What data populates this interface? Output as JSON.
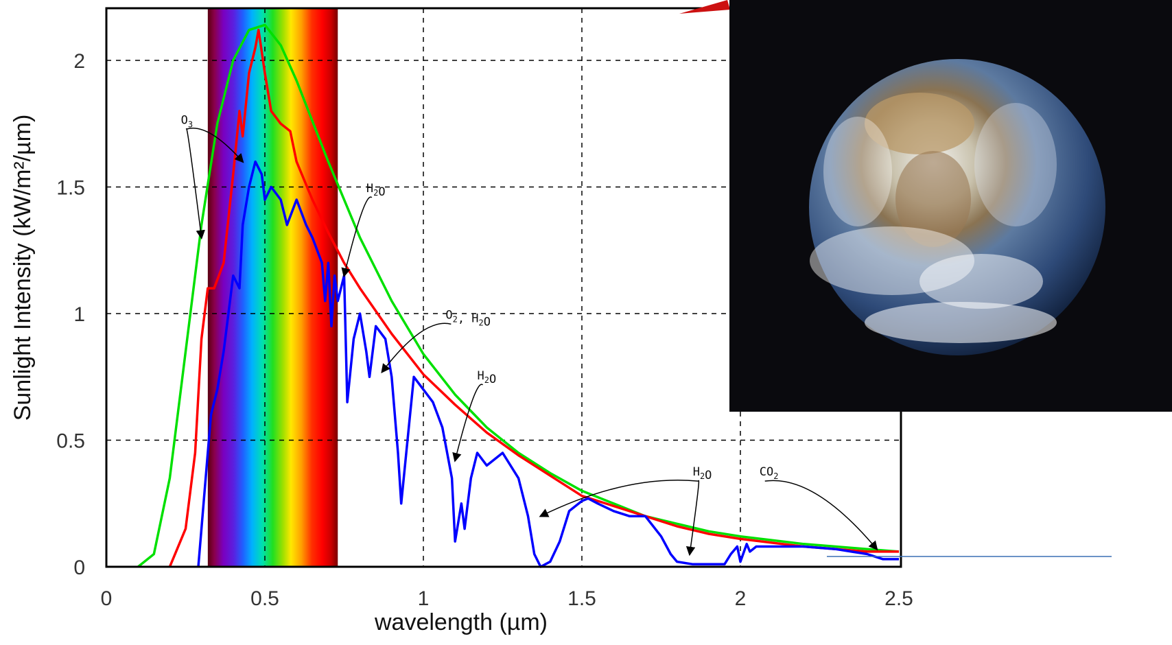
{
  "chart_data": {
    "type": "line",
    "title": "",
    "xlabel": "wavelength (µm)",
    "ylabel": "Sunlight Intensity (kW/m²/µm)",
    "xlim": [
      0,
      2.5
    ],
    "ylim": [
      0,
      2.15
    ],
    "x_ticks": [
      {
        "value": 0,
        "label": "0"
      },
      {
        "value": 0.5,
        "label": "0.5"
      },
      {
        "value": 1,
        "label": "1"
      },
      {
        "value": 1.5,
        "label": "1.5"
      },
      {
        "value": 2,
        "label": "2"
      },
      {
        "value": 2.5,
        "label": "2.5"
      }
    ],
    "y_ticks": [
      {
        "value": 0,
        "label": "0"
      },
      {
        "value": 0.5,
        "label": "0.5"
      },
      {
        "value": 1,
        "label": "1"
      },
      {
        "value": 1.5,
        "label": "1.5"
      },
      {
        "value": 2,
        "label": "2"
      }
    ],
    "grid": "dashed",
    "visible_band": [
      0.32,
      0.73
    ],
    "series": [
      {
        "color": "#00e000",
        "x": [
          0.1,
          0.15,
          0.2,
          0.25,
          0.3,
          0.35,
          0.4,
          0.45,
          0.5,
          0.55,
          0.6,
          0.65,
          0.7,
          0.8,
          0.9,
          1.0,
          1.1,
          1.2,
          1.3,
          1.4,
          1.5,
          1.6,
          1.7,
          1.8,
          1.9,
          2.0,
          2.2,
          2.4,
          2.5
        ],
        "values": [
          0.0,
          0.05,
          0.35,
          0.85,
          1.35,
          1.75,
          2.0,
          2.12,
          2.14,
          2.06,
          1.92,
          1.76,
          1.6,
          1.3,
          1.05,
          0.84,
          0.68,
          0.55,
          0.45,
          0.37,
          0.3,
          0.25,
          0.2,
          0.17,
          0.14,
          0.12,
          0.09,
          0.07,
          0.06
        ]
      },
      {
        "color": "#ff0000",
        "x": [
          0.2,
          0.25,
          0.28,
          0.3,
          0.32,
          0.34,
          0.37,
          0.4,
          0.42,
          0.43,
          0.45,
          0.47,
          0.48,
          0.5,
          0.52,
          0.55,
          0.58,
          0.6,
          0.65,
          0.7,
          0.75,
          0.8,
          0.9,
          1.0,
          1.1,
          1.2,
          1.3,
          1.4,
          1.5,
          1.6,
          1.7,
          1.8,
          1.9,
          2.0,
          2.2,
          2.4,
          2.5
        ],
        "values": [
          0.0,
          0.15,
          0.45,
          0.9,
          1.1,
          1.1,
          1.2,
          1.55,
          1.8,
          1.7,
          1.95,
          2.05,
          2.12,
          1.95,
          1.8,
          1.75,
          1.72,
          1.6,
          1.45,
          1.32,
          1.2,
          1.1,
          0.92,
          0.76,
          0.64,
          0.53,
          0.44,
          0.36,
          0.28,
          0.24,
          0.2,
          0.16,
          0.13,
          0.11,
          0.08,
          0.06,
          0.06
        ]
      },
      {
        "color": "#0000ff",
        "x": [
          0.29,
          0.31,
          0.32,
          0.33,
          0.35,
          0.37,
          0.39,
          0.4,
          0.42,
          0.43,
          0.45,
          0.47,
          0.49,
          0.5,
          0.52,
          0.55,
          0.57,
          0.6,
          0.63,
          0.65,
          0.68,
          0.69,
          0.7,
          0.71,
          0.72,
          0.73,
          0.75,
          0.76,
          0.78,
          0.8,
          0.82,
          0.83,
          0.85,
          0.88,
          0.9,
          0.92,
          0.93,
          0.95,
          0.97,
          1.0,
          1.03,
          1.06,
          1.09,
          1.1,
          1.12,
          1.13,
          1.15,
          1.17,
          1.2,
          1.25,
          1.3,
          1.33,
          1.35,
          1.37,
          1.4,
          1.43,
          1.46,
          1.5,
          1.52,
          1.55,
          1.6,
          1.65,
          1.7,
          1.75,
          1.78,
          1.8,
          1.85,
          1.9,
          1.95,
          1.97,
          1.99,
          2.0,
          2.02,
          2.03,
          2.05,
          2.1,
          2.2,
          2.3,
          2.35,
          2.4,
          2.45,
          2.5
        ],
        "values": [
          0.0,
          0.3,
          0.45,
          0.6,
          0.7,
          0.85,
          1.05,
          1.15,
          1.1,
          1.35,
          1.5,
          1.6,
          1.55,
          1.45,
          1.5,
          1.45,
          1.35,
          1.45,
          1.35,
          1.3,
          1.2,
          1.05,
          1.2,
          0.95,
          1.15,
          1.05,
          1.15,
          0.65,
          0.9,
          1.0,
          0.85,
          0.75,
          0.95,
          0.9,
          0.75,
          0.45,
          0.25,
          0.5,
          0.75,
          0.7,
          0.65,
          0.55,
          0.35,
          0.1,
          0.25,
          0.15,
          0.35,
          0.45,
          0.4,
          0.45,
          0.35,
          0.2,
          0.05,
          0.0,
          0.02,
          0.1,
          0.22,
          0.26,
          0.27,
          0.25,
          0.22,
          0.2,
          0.2,
          0.12,
          0.05,
          0.02,
          0.01,
          0.01,
          0.01,
          0.05,
          0.08,
          0.02,
          0.09,
          0.06,
          0.08,
          0.08,
          0.08,
          0.07,
          0.06,
          0.05,
          0.03,
          0.03
        ]
      }
    ],
    "annotations": [
      {
        "label": "O",
        "sub": "3",
        "x": 0.235,
        "y": 1.75
      },
      {
        "label": "H",
        "sub": "2",
        "label2": "O",
        "x": 0.82,
        "y": 1.48
      },
      {
        "label": "O",
        "sub": "2",
        "label2": ", H",
        "sub2": "2",
        "label3": "O",
        "x": 1.07,
        "y": 0.98
      },
      {
        "label": "H",
        "sub": "2",
        "label2": "O",
        "x": 1.17,
        "y": 0.74
      },
      {
        "label": "H",
        "sub": "2",
        "label2": "O",
        "x": 1.85,
        "y": 0.36
      },
      {
        "label": "CO",
        "sub": "2",
        "x": 2.06,
        "y": 0.36
      }
    ]
  },
  "photo": {
    "subject": "earth-globe",
    "background": "#0a0a0e"
  },
  "colors": {
    "axis": "#000000",
    "grid": "#000000",
    "pointer": "#cc1111",
    "baseline_extension": "#3a6fb4"
  }
}
